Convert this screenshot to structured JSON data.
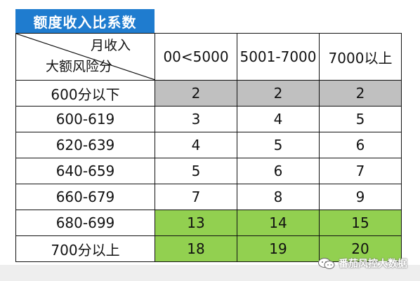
{
  "title": "额度收入比系数",
  "header": {
    "corner_top": "月收入",
    "corner_bottom": "大额风险分",
    "columns": [
      "00<5000",
      "5001-7000",
      "7000以上"
    ]
  },
  "rows": [
    {
      "label": "600分以下",
      "values": [
        "2",
        "2",
        "2"
      ],
      "highlight": "gray"
    },
    {
      "label": "600-619",
      "values": [
        "3",
        "4",
        "5"
      ],
      "highlight": "none"
    },
    {
      "label": "620-639",
      "values": [
        "4",
        "5",
        "6"
      ],
      "highlight": "none"
    },
    {
      "label": "640-659",
      "values": [
        "5",
        "6",
        "7"
      ],
      "highlight": "none"
    },
    {
      "label": "660-679",
      "values": [
        "7",
        "8",
        "9"
      ],
      "highlight": "none"
    },
    {
      "label": "680-699",
      "values": [
        "13",
        "14",
        "15"
      ],
      "highlight": "green"
    },
    {
      "label": "700分以上",
      "values": [
        "18",
        "19",
        "20"
      ],
      "highlight": "green"
    }
  ],
  "colors": {
    "title_bg": "#1f7ccf",
    "gray_fill": "#c0c0c0",
    "green_fill": "#92d050"
  },
  "watermark": {
    "icon": "wechat-icon",
    "text": "番茄风控大数据"
  }
}
